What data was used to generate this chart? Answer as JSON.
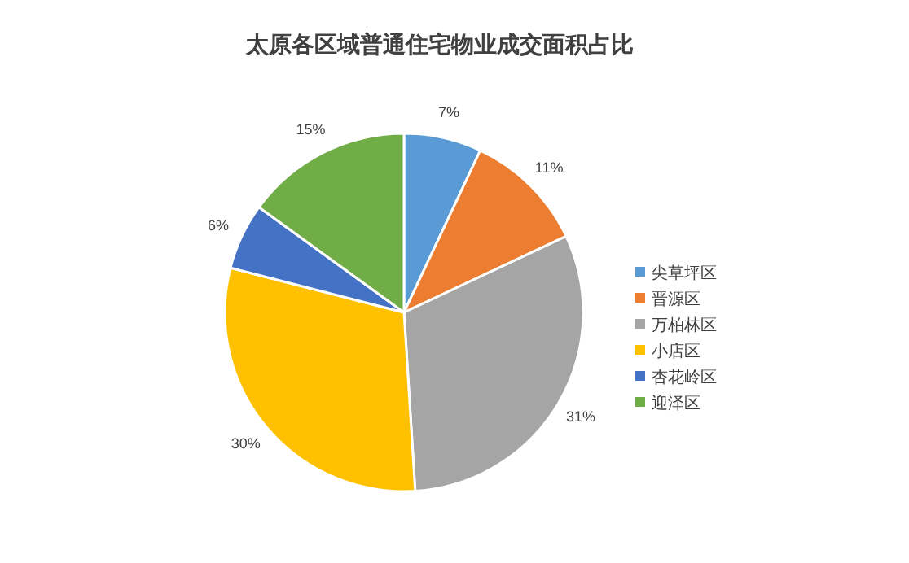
{
  "chart_data": {
    "type": "pie",
    "title": "太原各区域普通住宅物业成交面积占比",
    "categories": [
      "尖草坪区",
      "晋源区",
      "万柏林区",
      "小店区",
      "杏花岭区",
      "迎泽区"
    ],
    "values": [
      7,
      11,
      31,
      30,
      6,
      15
    ],
    "colors": [
      "#5b9bd5",
      "#ed7d31",
      "#a5a5a5",
      "#ffc000",
      "#4472c4",
      "#70ad47"
    ],
    "value_labels": [
      "7%",
      "11%",
      "31%",
      "30%",
      "6%",
      "15%"
    ],
    "legend": "right"
  }
}
